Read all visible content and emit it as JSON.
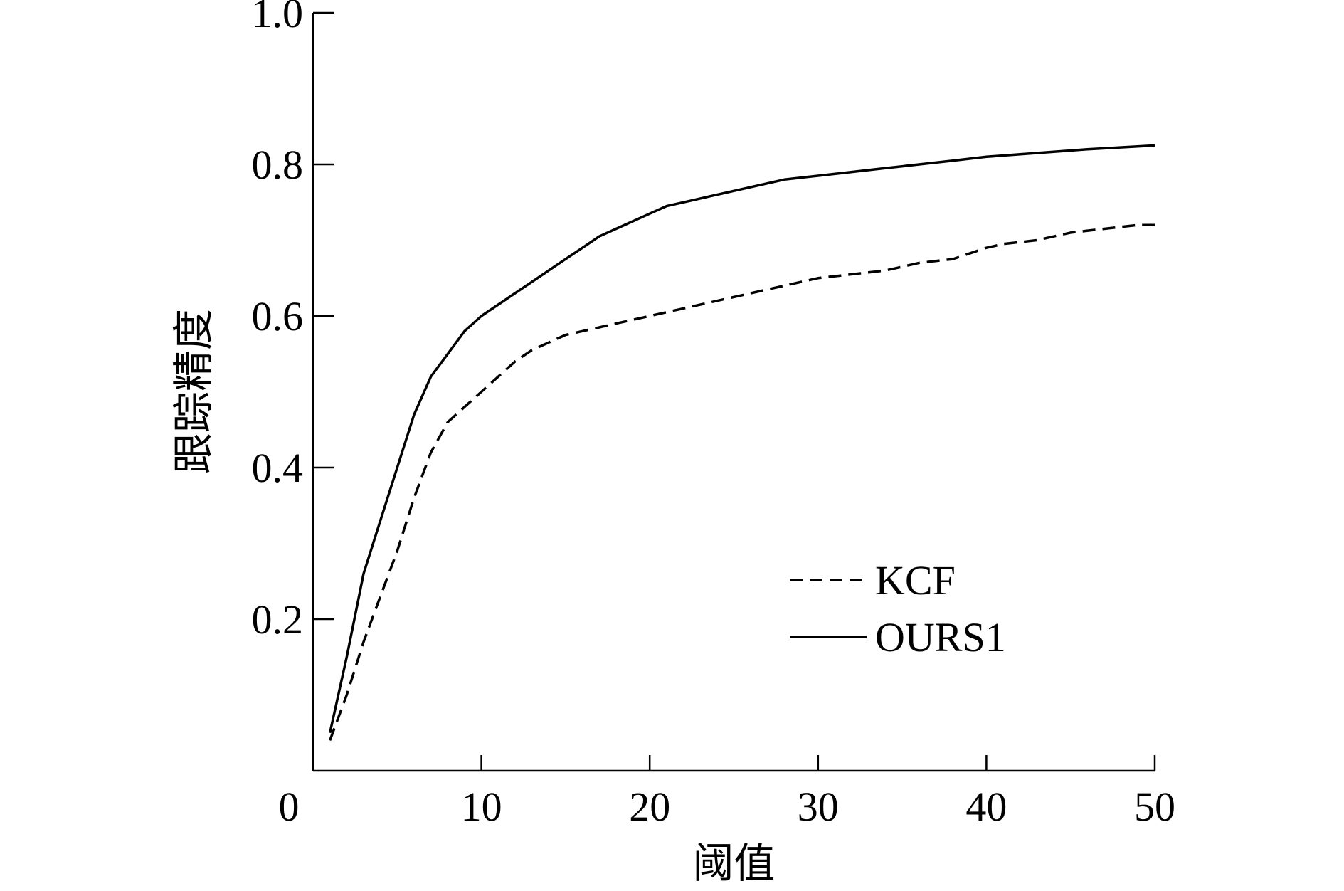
{
  "chart_data": {
    "type": "line",
    "title": "",
    "xlabel": "阈值",
    "ylabel": "跟踪精度",
    "xlim": [
      0,
      50
    ],
    "ylim": [
      0,
      1.0
    ],
    "xticks": [
      "0",
      "10",
      "20",
      "30",
      "40",
      "50"
    ],
    "yticks": [
      "0.2",
      "0.4",
      "0.6",
      "0.8",
      "1.0"
    ],
    "grid": false,
    "legend_position": "bottom-right",
    "series": [
      {
        "name": "KCF",
        "style": "dashed",
        "x": [
          1,
          2,
          3,
          4,
          5,
          6,
          7,
          8,
          9,
          10,
          11,
          12,
          13,
          14,
          15,
          16,
          17,
          18,
          19,
          20,
          22,
          24,
          26,
          28,
          30,
          32,
          34,
          35,
          36,
          38,
          40,
          41,
          43,
          45,
          47,
          49,
          50
        ],
        "y": [
          0.04,
          0.1,
          0.17,
          0.23,
          0.29,
          0.36,
          0.42,
          0.46,
          0.48,
          0.5,
          0.52,
          0.54,
          0.555,
          0.565,
          0.575,
          0.58,
          0.585,
          0.59,
          0.595,
          0.6,
          0.61,
          0.62,
          0.63,
          0.64,
          0.65,
          0.655,
          0.66,
          0.665,
          0.67,
          0.675,
          0.69,
          0.695,
          0.7,
          0.71,
          0.715,
          0.72,
          0.72
        ]
      },
      {
        "name": "OURS1",
        "style": "solid",
        "x": [
          1,
          2,
          3,
          4,
          5,
          6,
          7,
          8,
          9,
          10,
          11,
          12,
          13,
          14,
          15,
          16,
          17,
          18,
          19,
          20,
          21,
          22,
          23,
          24,
          26,
          28,
          30,
          32,
          34,
          36,
          38,
          40,
          43,
          46,
          50
        ],
        "y": [
          0.05,
          0.15,
          0.26,
          0.33,
          0.4,
          0.47,
          0.52,
          0.55,
          0.58,
          0.6,
          0.615,
          0.63,
          0.645,
          0.66,
          0.675,
          0.69,
          0.705,
          0.715,
          0.725,
          0.735,
          0.745,
          0.75,
          0.755,
          0.76,
          0.77,
          0.78,
          0.785,
          0.79,
          0.795,
          0.8,
          0.805,
          0.81,
          0.815,
          0.82,
          0.825
        ]
      }
    ]
  }
}
